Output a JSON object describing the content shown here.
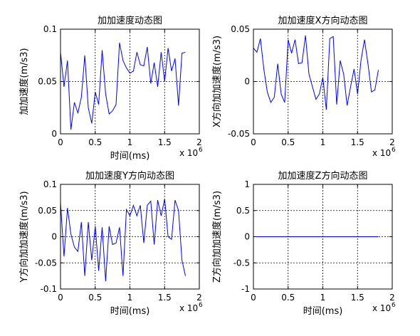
{
  "window": {
    "background": "#ffffff",
    "line_color": "#0000ff",
    "axis_color": "#000000",
    "grid_color": "#000000"
  },
  "chart_data": [
    {
      "type": "line",
      "title": "加加速度动态图",
      "xlabel": "时间(ms)",
      "ylabel": "加加速度(m/s3)",
      "x_multiplier_label": "x 10",
      "x_multiplier_exp": "6",
      "xlim": [
        0,
        2
      ],
      "ylim": [
        0,
        0.1
      ],
      "xticks": [
        0,
        0.5,
        1,
        1.5,
        2
      ],
      "xtick_labels": [
        "0",
        "0.5",
        "1",
        "1.5",
        "2"
      ],
      "yticks": [
        0,
        0.05,
        0.1
      ],
      "ytick_labels": [
        "0",
        "0.05",
        "0.1"
      ],
      "grid": "dotted",
      "series": [
        {
          "x": [
            0,
            0.05,
            0.1,
            0.15,
            0.2,
            0.25,
            0.3,
            0.35,
            0.4,
            0.45,
            0.5,
            0.55,
            0.6,
            0.65,
            0.7,
            0.75,
            0.8,
            0.85,
            0.9,
            0.95,
            1.0,
            1.05,
            1.1,
            1.15,
            1.2,
            1.25,
            1.3,
            1.35,
            1.4,
            1.45,
            1.5,
            1.55,
            1.6,
            1.65,
            1.7,
            1.75,
            1.8
          ],
          "y": [
            0.078,
            0.045,
            0.07,
            0.004,
            0.03,
            0.02,
            0.035,
            0.075,
            0.025,
            0.01,
            0.04,
            0.028,
            0.08,
            0.038,
            0.019,
            0.022,
            0.028,
            0.087,
            0.07,
            0.063,
            0.058,
            0.06,
            0.078,
            0.066,
            0.065,
            0.083,
            0.048,
            0.068,
            0.045,
            0.078,
            0.05,
            0.082,
            0.06,
            0.072,
            0.027,
            0.077,
            0.078
          ]
        }
      ]
    },
    {
      "type": "line",
      "title": "加加速度X方向动态图",
      "xlabel": "",
      "ylabel": "X方向加加速度(m/s3)",
      "x_multiplier_label": "x 10",
      "x_multiplier_exp": "6",
      "xlim": [
        0,
        2
      ],
      "ylim": [
        -0.05,
        0.05
      ],
      "xticks": [
        0,
        0.5,
        1,
        1.5,
        2
      ],
      "xtick_labels": [
        "0",
        "0.5",
        "1",
        "1.5",
        "2"
      ],
      "yticks": [
        -0.05,
        0,
        0.05
      ],
      "ytick_labels": [
        "-0.05",
        "0",
        "0.05"
      ],
      "grid": "dotted",
      "series": [
        {
          "x": [
            0,
            0.05,
            0.1,
            0.15,
            0.2,
            0.25,
            0.3,
            0.35,
            0.4,
            0.45,
            0.5,
            0.55,
            0.6,
            0.65,
            0.7,
            0.75,
            0.8,
            0.85,
            0.9,
            0.95,
            1.0,
            1.05,
            1.1,
            1.15,
            1.2,
            1.25,
            1.3,
            1.35,
            1.4,
            1.45,
            1.5,
            1.55,
            1.6,
            1.65,
            1.7,
            1.75,
            1.8
          ],
          "y": [
            0.032,
            0.028,
            0.041,
            0.012,
            -0.01,
            -0.02,
            -0.015,
            0.017,
            -0.012,
            -0.02,
            0.04,
            0.027,
            0.04,
            0.017,
            0.018,
            0.044,
            0.007,
            -0.005,
            -0.017,
            -0.012,
            0.004,
            -0.027,
            0.041,
            0.043,
            -0.022,
            0.02,
            0.007,
            -0.023,
            -0.005,
            0.012,
            -0.012,
            0.02,
            0.04,
            0.017,
            -0.01,
            -0.008,
            0.011
          ]
        }
      ]
    },
    {
      "type": "line",
      "title": "加加速度Y方向动态图",
      "xlabel": "时间(ms)",
      "ylabel": "Y方向加加速度(m/s3)",
      "x_multiplier_label": "x 10",
      "x_multiplier_exp": "6",
      "xlim": [
        0,
        2
      ],
      "ylim": [
        -0.1,
        0.1
      ],
      "xticks": [
        0,
        0.5,
        1,
        1.5,
        2
      ],
      "xtick_labels": [
        "0",
        "0.5",
        "1",
        "1.5",
        "2"
      ],
      "yticks": [
        -0.1,
        -0.05,
        0,
        0.05,
        0.1
      ],
      "ytick_labels": [
        "-0.1",
        "-0.05",
        "0",
        "0.05",
        "0.1"
      ],
      "grid": "dotted",
      "series": [
        {
          "x": [
            0,
            0.05,
            0.1,
            0.15,
            0.2,
            0.25,
            0.3,
            0.35,
            0.4,
            0.45,
            0.5,
            0.55,
            0.6,
            0.65,
            0.7,
            0.75,
            0.8,
            0.85,
            0.9,
            0.95,
            1.0,
            1.05,
            1.1,
            1.15,
            1.2,
            1.25,
            1.3,
            1.35,
            1.4,
            1.45,
            1.5,
            1.55,
            1.6,
            1.65,
            1.7,
            1.75,
            1.8
          ],
          "y": [
            0.065,
            -0.038,
            0.055,
            0.005,
            -0.02,
            -0.028,
            0.028,
            -0.075,
            0.028,
            -0.045,
            0.02,
            -0.065,
            0.018,
            -0.085,
            0.02,
            -0.015,
            -0.012,
            0.018,
            -0.075,
            0.052,
            0.04,
            0.06,
            0.04,
            0.06,
            -0.012,
            0.06,
            0.068,
            -0.015,
            0.07,
            0.04,
            0.072,
            0.0,
            -0.005,
            0.07,
            0.05,
            -0.045,
            -0.075
          ]
        }
      ]
    },
    {
      "type": "line",
      "title": "加加速度Z方向动态图",
      "xlabel": "时间(ms)",
      "ylabel": "Z方向加加速度(m/s3)",
      "x_multiplier_label": "x 10",
      "x_multiplier_exp": "6",
      "xlim": [
        0,
        2
      ],
      "ylim": [
        -1,
        1
      ],
      "xticks": [
        0,
        0.5,
        1,
        1.5,
        2
      ],
      "xtick_labels": [
        "0",
        "0.5",
        "1",
        "1.5",
        "2"
      ],
      "yticks": [
        -1,
        -0.5,
        0,
        0.5,
        1
      ],
      "ytick_labels": [
        "-1",
        "-0.5",
        "0",
        "0.5",
        "1"
      ],
      "grid": "dotted",
      "series": [
        {
          "x": [
            0,
            1.8
          ],
          "y": [
            0,
            0
          ]
        }
      ]
    }
  ]
}
